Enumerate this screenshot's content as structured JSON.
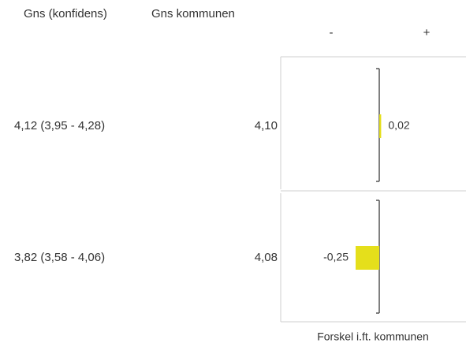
{
  "header": {
    "average_ci": "Gns (konfidens)",
    "municipality_average": "Gns kommunen",
    "minus": "-",
    "plus": "+"
  },
  "chart_data": {
    "type": "bar",
    "orientation": "horizontal",
    "color": "#e5df1b",
    "xlim": [
      -1,
      1
    ],
    "rows": [
      {
        "average_ci": "4,12 (3,95 - 4,28)",
        "municipality_average": "4,10"
      },
      {
        "average_ci": "3,82 (3,58 - 4,06)",
        "municipality_average": "4,08"
      }
    ],
    "values": [
      0.02,
      -0.25
    ],
    "value_labels": [
      "0,02",
      "-0,25"
    ],
    "xlabel": "Forskel i.ft. kommunen"
  }
}
